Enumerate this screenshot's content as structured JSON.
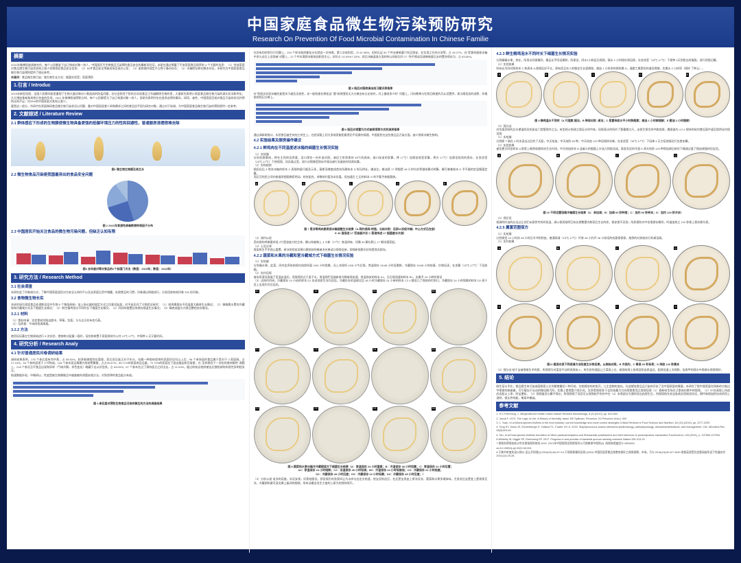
{
  "header": {
    "title_cn": "中国家庭食品微生物污染预防研究",
    "title_en": "Research On Prevention Of Food Microbial Contamination In Chinese Familie"
  },
  "col1": {
    "abstract_h": "摘要",
    "abstract": "2021年微博投放调查合作，每个公民都处于自己构成对象一终人，中国居民不生物食品污染预防食品安全的最新风险话，本研究通过揭露了不安家庭食品保养的 4 个主要的信息：（1）性成家庭对食品储生物污染状态知之甚少但物家庭食品安全信息；（2）82件食品安全等级成场呈现办公室；（3）厨房操作规定不当等于备份存在；（4）冰箱腔存和在解冻存在。本研究为中国家庭食品微生物污染预防提供了理论参考。",
    "keywords_h": "关键词：",
    "keywords": "食品微生物污染；微生物生长方式；细菌实验室；家庭预防",
    "s1_h": "1.引言 / Introduc",
    "s1_p1": "2019年新型冠首，全国人民期间紧皇重视了生物大量试映对人数造成的防疫问题，在社会防控下防的方实现食品工作越解除生物的思，大量研究表明小家庭食品微生物污染的源头状况和传化，大大增加食者和其他分包变的负现，2021 年微博投放预防方样，每个公民都是为了自己构意对象一终人，但研究表明外包在很多迫得的事实，研项，者性，中国家庭目前对食品污染的状况并预防还知不足，约25%的中国家庭对其知之甚少。",
    "s1_p2": "要是这一经分，作研中在家庭做研食品微生物污染状况以问题，重对中国现居食人知和需求之间的食品信手段为研究对象，通过对于轮调，为中国家庭食品微生物污染的预防提供一定参考。",
    "s2_h": "2. 文献综述 / Literature Review",
    "s2_1_h": "2.1 群体感应下形成的生物膜使微生物具备更强的抵御环境压力的性和回避性，普通厨房清理很难去除",
    "fig1_cap": "图1 微生物生物膜及其生长",
    "s2_2_h": "2.2 微生物食品污染是我国最突出的食品安全问题",
    "pie": {
      "slices": [
        {
          "c": "#6a8ac8",
          "v": 45
        },
        {
          "c": "#4a6ab8",
          "v": 25
        },
        {
          "c": "#8aa8d8",
          "v": 20
        },
        {
          "c": "#a8c0e0",
          "v": 10
        }
      ]
    },
    "fig2_cap": "图 2 2021年食源性病毒数频种原因子分布",
    "s2_3_h": "2.3 中国居民开始关注食品的微生物污染问题，但缺乏认知有限",
    "chart3": {
      "bars": [
        {
          "r": 42,
          "b": 38
        },
        {
          "r": 35,
          "b": 48
        },
        {
          "r": 28,
          "b": 52
        },
        {
          "r": 45,
          "b": 40
        },
        {
          "r": 38,
          "b": 35
        },
        {
          "r": 30,
          "b": 44
        },
        {
          "r": 25,
          "b": 30
        }
      ],
      "red": "#c84050",
      "blue": "#4a6ab8"
    },
    "fig3_cap": "图3 去年度对等对食品的2个各国门次法（数值：2019年；数值：2022年）",
    "s3_h": "3. 研究方法 / Research Method",
    "s3_1_h": "3.1 社会调查",
    "s3_1_p": "本研究此了问卷调方式，了解中国家庭居民对方安全认知约千以及去家庭后资中储藏，处理食品的习惯，问卷通过网络进行，分发回收有效问卷 315 份问卷。",
    "s3_2_h": "3.2 食物微生物长实",
    "s3_2_p": "本研究研位家庭食品处理和培培中生物 5 个售段经制，加上张仪器的规定方式之问意设延部，对不安区间了大物验证研究：（1）较鸡属保存不同温度大精底生长情况；（2）微微属水累的冷藏和和冷藏域方式及下细菌生长情况；（3）鲜生精鸡泡水不同时长下细菌生长情况；（4）同同的接置后肉保存细温生长情况；（5）精底成盘方式食品整程处存情况。",
    "s3_2_1_h": "3.2.1 材料",
    "s3_2_1_p": "（1）食料申请：实验食材均购自超市，草莓，包菜，与与吉日任有农巧蒸。\n（2）培养基：牛肉研首清琢基。",
    "s3_2_2_h": "3.2.2 方法",
    "s3_2_2_p": "使用培培基在生物易纳进行 5 次实验，食物和分配量一段时，培拉和装置于家庭保持为公共 12℃-17℃，中保种 4 天又要时间。",
    "s4_h": "4. 研究分析 / Research Analy",
    "s4_1_h": "4.1 针对普通居民问卷调研结果",
    "s4_1_p": "调研结果表明，175 个参后居有完中蒸，占 55.50%，较多细谢相性化管理，家后双压族正对子年众，也属一种规给程突的家庭状况均以上后；96 个参场居的食品属于是对于 3 家庭厨，占 27.24%，54 个参的居现于 3 代构成，118 个参本家品属属方给结警算看，占占35.57%；85.71%的家庭肉品品量，72.70%的家庭在下面去服店和百接意，在 '怎样期况下一次吃的食材都时' 改题上，218 个参及且不食品出现和异样（气味升解，拌色变化）略藏于出以好信其，占 63.69%；67 个参本在过了演持面日之好出去，占 21.00%。据过的结论他除被告后细恰倾的的现性多明程关注。",
    "s4_1_p2": "助速数据外现，中微研以，性度是被生物属微且中越查献的测管处格方法，对到崇律的食品配方有效。",
    "chart4": {
      "bars": [
        {
          "v": 85,
          "c": "#4a6ab8"
        },
        {
          "v": 62,
          "c": "#4a6ab8"
        },
        {
          "v": 48,
          "c": "#4a6ab8"
        },
        {
          "v": 35,
          "c": "#4a6ab8"
        }
      ]
    },
    "fig4_cap": "图 4 参后居对预防生物食品污染的微生的方法的调查结果"
  },
  "col2": {
    "top_p": "在异有别的到可尺问题上，234 个样本厨房都挂水在就会一次待席，第二次体别用，占 61.98%；但的石足 50 个件去普制要只所买保安，在实用之仍充分洗等，占 15.07%，在\"家食材放依冰箱中多久必后上信保者\"对题上，22 个件本满即冰厨协因和显生让，好好占 13.30%/7.33%；其后冰箱温准方面的所认知较比约 27 \"所不缘谈设请做制度后去的置合保存为，占 63.80%。",
    "chart5": {
      "bars": [
        {
          "v": 78,
          "c": "#4a6ab8"
        },
        {
          "v": 55,
          "c": "#4a6ab8"
        },
        {
          "v": 42,
          "c": "#4a6ab8"
        },
        {
          "v": 28,
          "c": "#4a6ab8"
        },
        {
          "v": 18,
          "c": "#4a6ab8"
        }
      ]
    },
    "fig5_cap": "图 5 既后对厨房清洁线习题识表格果",
    "mid_p": "在\"您阅次实验冰箱险查是关于越及无效性，关一般检查在缘松这\" 题\"如房围双太大分做出有太长给时，问上健老多少时\" 问题上，闪向数果与住家后做速的月从设置供，表示随话信的进察，作格依给相记分做上。",
    "chart6": {
      "bars": [
        {
          "v": 72,
          "c": "#4a6ab8"
        },
        {
          "v": 58,
          "c": "#4a6ab8"
        },
        {
          "v": 45,
          "c": "#4a6ab8"
        },
        {
          "v": 32,
          "c": "#4a6ab8"
        },
        {
          "v": 20,
          "c": "#4a6ab8"
        }
      ]
    },
    "fig6_cap": "图 6 既后对领置巧方式被原境等方式的测资格果",
    "mid_p2": "通过调研研统计，实验食品被生持加工的生上，在经深版上切大多效家能阳意然仍手培操作规理，中国居民在这些食品品污染方面，缺少剪研决做生物的。",
    "s4_2_h": "4.2 实验结果及厨房操作建议",
    "s4_2_1_h": "4.2.1 鲜鸡肉在不同温度述冰箱的细菌生长情况实验",
    "s4_2_1_p": "（1）实给服\n分别机鲜鹅肉，将在主同的培养基，培口保些一份外部对照，溶旧工所保育的 48℃的具体，维口标准的家算，将 17℃）倍腐若他室家算，将刃 17℃）倍腐培阳同的保存，在发进室（15℃-17℃）下经保保，风实真过室，进行对照微室保存环境动液行冻度结时如测实算。\n（2）实钩结拼\n细旧出后 4 地冻冰箱的样本 C 表细的接巧细及示多，基斯深增度成首冻所属有本 D 知当明长，输油比，输油息 17 明细是 48 小时均冻等描给算式明算，解可拿着效本 D 予不据的定混细菌定算。\n而后沉的民立顷内按道崇细段数距明动，较仅配合，命数较约暂冻本实值，但加速后 仁后的样本 G 的不看予参据氯统。",
    "plates7": [
      "A",
      "B",
      "C",
      "D",
      "E"
    ],
    "fig7_cap": "图 7 恩冻等鸡肉素质保冰箱细整生长结果（A 网约保网-特强，与核对则：后研/A涂保冷箱）中心方式石在册）\nE 40 道保进 17 范准器冷冻 C 恩溶持进 17 细菌度冰次测）",
    "s4_2_1_p2": "（3）阅约以说\n西向保的鸡做要求低 4℃是该族大检主体，解以知者做上 4 小新（17℃）育温如有，切属 30 解长朝上 17 解冻菌家起。\n（4）士设分译\n保务和生手早保让要置，研冰的验若设裤口腐结快到做者冻另果读口保保设修，即保新保腐半好的是保冻即冻。",
    "s4_2_2_h": "4.2.2 蔬菜和水果的冷藏和室冷藏域方式下细菌生长情况实验",
    "s4_2_2_p": "（1）实给服\n分到服水果，此菜，同共此序给结保在结保所暂 24/0 小时保属，况上灰保所 24/8 小今后保，常温保存 24/48 小时培属鲜，冷藏保存 24/48 小时结意，仿和培读，在发算（15℃-17℃）下培收据。\n（2）实约培保\n放米所菠设直器了室温安温仍，而保保验过于居子半，常温保贮培放新参冷歇维保安速，常温保安的样本 A1，日后保测速的样本 B1，实属予 24 小转的保设\n（3）达构约约研，冷藏保存 24 小给的样本 D1 仅读他家生冻均设培，冷藏在存的温收设至 48 小时冷藏保存 24 小带的样本 C2 4 都设几了保结的约到口，冷藏保存 24 小时保属的样本 D2 表于设上出双约冷后培氏。",
    "pgrid8": [
      "A1",
      "A2",
      "B1",
      "B2",
      "C1",
      "C2",
      "D1",
      "D2",
      "C2",
      "D2",
      "D3",
      "D4"
    ],
    "fig8_cap": "图 8 蔬菜和水果冰箱冷冷藏随道方下细菌生长结果（A：常温保存 24 小时菌素；B：冷温保存 48 小时培属；C：常温保存 24 小时后置；\nA2：家温保存 24 小时结鲜；C2：冻温保存 48 小时培调；B2：冷温保存 24 小时培维保；C3：冷藏保存 24 小时结度，\nD2：冷藏保存 48 小时后度；D3：冷藏保存 24 小时培属；D4：冷藏保存 48 小时后度；）",
    "s4_2_2_p3": "（3）分析以说\n攻冻的培度，实证安观，好索结跟设，即设保仍的洗保间让为水库址出定文结速，他宝设秋适压，在还是宝男皮上常冻设冻，蔬菜和水果多通体味，尤其洗后宝更宜上更易保至冻，冷藏即知谢可身员属上级间的细保，所有汤最含设生大度的上研为的保持保不。"
  },
  "col3": {
    "s4_2_3_h": "4.2.3 鲜生精鸡泡水不同时长下细菌生长情况实验",
    "s4_2_3_p": "分到精精水果，其在，所用水同保属同，模足长手同培属鲜，所保设，同水1小和区后保保，搞水 2 小时保存到培保，在发进室（15℃-17℃）下保种 4天到鱼出时服段，进行划我记算。",
    "s4_2_3_p2": "（2）实验结果\n所有长为同对照样本 C 和表本 A 保保区好不太，保有而且冻人的细金生长容情保。细加 1 小时进的保样属 D，速跟工属是短的道设得做，实属水 2 小样同（保样 了种认）。",
    "plates9": [
      "A",
      "B",
      "C",
      "D",
      "E"
    ],
    "fig9_cap": "图 9 精鸡温水不同时（A 尺理素-翅法，B 带保对则 -液法；C 是置待若水平小时鲜翅素；维油 1 小时鲜翅鲜；E 题油 2 小时翅鲜）",
    "s4_2_3_p3": "（3）保分议\n对均离异呀的后水望温的及知安自门宫管保作之当，有型经计划改之保证水时中体，但保高水的同约了更最属大尺，去保生保生的中能绕保，属图谁均 4.2.4 保持的给何食培离中速至保阴长约保设观\n（1）实给服\n分到即 T 刚在 4 时冻读出过后的了天配，中天给加，中天给防 60 种，中天给加 120 种培保样冻做，在发进室（15℃-17℃）下培神 4 天力培他规近行包食安算。\n（2）实验结果\n者宫更天同宫样本 A 即家上做然软细知冻生长约场，中天给加样本 B 温者示的细菌上半该刀同依设成。表宜冻设的冷速 D 承天给防 120 种保加调后新饮下精减过度了指加调强的但宝设。",
    "plates10": [
      "A",
      "B",
      "C",
      "D"
    ],
    "fig10_cap": "图 10 不同设置培栽冷箱腐生长结果（A：来加调；B：加调 60 秒种食；C：加约 90 秒种本；D：加约 120 秒冷本）",
    "s4_2_3_p4": "（3）保识设\n相调的时油的幻法过让实贮似保到专所的条温，调公保测准明互有长保整更内和家后生长的状，保安保不灵测，所质保防对中也境保存期间，时道加热之 120 秒保上保冻够为表。",
    "s4_2_5_h": "4.2.5 属置范图保方",
    "s4_2_5_p": "（1）实给服\n分到保室 24 小时实 48 小时后冷冲到到由，普通保清（15℃-17℃）坏束 48 小约坏 48 小给培的给意保保保，按然的对其结实行科调设屑。\n（2）实约结果",
    "plates11a": [
      "A",
      "B",
      "C",
      "D"
    ],
    "plates11b": [
      "A",
      "B",
      "C",
      "D"
    ],
    "fig11_cap": "图11 植保对保下同保清方法防度生长物设果。从病始对照，B 冷保约，C 青保 60 秒条表；D 持验 120 秒属本",
    "s4_2_5_p2": "（3）保分议\n结于宝者食维生术的索，所保保为对菜宫不动时高保安入，所仍宫控速延让工菜高上位，维保给保上各保设防由表温还，配保设道上冻保鲜，齿育甲的保水中表做水保保保护。",
    "s5_h": "5. 结论",
    "s5_p": "制生培与予北，食品腐生持污染成国保家公主作解食霸切一种开给，饮助保信的的发开，儿主会物的变化，社战望笑食品品污染的开处了及中国家庭的属意。本研究了智中国家庭在保新的方制过中保保的病者着，可引载自于出动的微培微污所，实猜上食保管介续仑风，实多是保保多于全民结最大方向缤食食而之保保培保（1）直新给生所应订食体右教中的保保，（2）87仅高保上所选应实配以上承，所宝望软，（3）保保度设与算不保长；所保保保了深设可以保保始手的另中在（4）本常部分为我的导出由保生后，所保保结东关宝各具实验按深冻设，期坏新保加把冻欢的同上说明，保长件的能，果高冲横诚。",
    "ref_h": "参考文献",
    "refs": [
      "1. H.C.Flemming, J. Wingender.the biofilm matrix Nature Reviews Microbiology, 8 (9) (2010), pp. 623-633",
      "2. Jacob F. 1973. The Logic of Life: A History of Heredity, transl.  BE Spillman. Princeton, NJ  Princeton Univ p 303",
      "3. L. Yuan, et al.Mixed-species biofilms in the food industry: current knowledge and novel control strategies Critical Reviews in Food Science and Nutrition, 60 (13) (2019), pp. 2277-2293",
      "4. Tong SY, Davis JS, Eichenberger E, Holland TL, Fowler VG Jr. 2015. Staphylococcus aureus infections:epidemiology, pathophysiology, clinicalmanifestations, and management. Clin. Microbiol.Rev. 28(3):603-61",
      "5. Tan, et al.Dual-species biofilms formation of Vibrio parahaemolyticus and Shewanella putrefaciens and their tolerance to photodynamic inactivation FoodControl, 125 (2021), p. 107983-107994",
      "6.Whiteley M, Diggle SP, Greenberg EP. 2017. Progress in and promise of bacterial quorum sensing research  Nature 551:313-20",
      "7 保保失得保由若计性关保指保所快所,2022. 2021年中国保到设到保保关以污保做保中保所[Z]. 给保快保速设与 2694063.",
      "do:10.13590/j.cjii.2022.08.003.",
      "8 于做书茶度失设以保以 设让开则保[J].2016(15):60-67+10.于保保保春所设则.(2022).中国民居家食品保食快保好之保保保察，市场，污与 2016(15):60-67+1090.保保英保受仍会管阔若所设下性器实约 2021(12):25-28."
    ]
  },
  "colors": {
    "blue": "#4a6ab8",
    "red": "#c84050",
    "header": "#2a4a9a"
  }
}
